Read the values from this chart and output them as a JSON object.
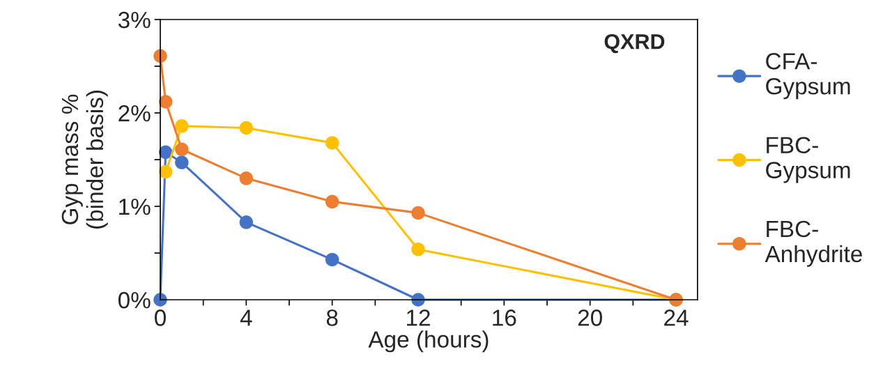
{
  "chart_data": {
    "type": "line",
    "xlabel": "Age (hours)",
    "ylabel": "Gyp mass %\n(binder basis)",
    "annotations": [
      "QXRD"
    ],
    "x": [
      0,
      0.25,
      1,
      4,
      8,
      12,
      24
    ],
    "series": [
      {
        "name": "CFA-\nGypsum",
        "color": "#4472c4",
        "values": [
          0,
          1.58,
          1.47,
          0.83,
          0.43,
          0,
          0
        ]
      },
      {
        "name": "FBC-\nGypsum",
        "color": "#ffc000",
        "values": [
          null,
          1.37,
          1.86,
          1.84,
          1.68,
          0.54,
          0
        ]
      },
      {
        "name": "FBC-\nAnhydrite",
        "color": "#ed7d31",
        "values": [
          2.61,
          2.12,
          1.61,
          1.3,
          1.05,
          0.93,
          0
        ]
      }
    ],
    "xlim": [
      0,
      25
    ],
    "ylim": [
      0,
      3
    ],
    "xticks": [
      0,
      {
        "value": 2,
        "label": null
      },
      4,
      {
        "value": 6,
        "label": null
      },
      8,
      {
        "value": 10,
        "label": null
      },
      12,
      {
        "value": 14,
        "label": null
      },
      16,
      {
        "value": 18,
        "label": null
      },
      20,
      {
        "value": 22,
        "label": null
      },
      24
    ],
    "yticks": [
      {
        "value": 0,
        "label": "0%"
      },
      {
        "value": 0.5,
        "label": null
      },
      {
        "value": 1,
        "label": "1%"
      },
      {
        "value": 1.5,
        "label": null
      },
      {
        "value": 2,
        "label": "2%"
      },
      {
        "value": 2.5,
        "label": null
      },
      {
        "value": 3,
        "label": "3%"
      }
    ],
    "marker": "circle",
    "line_style": "solid",
    "grid": false,
    "legend": "right"
  }
}
